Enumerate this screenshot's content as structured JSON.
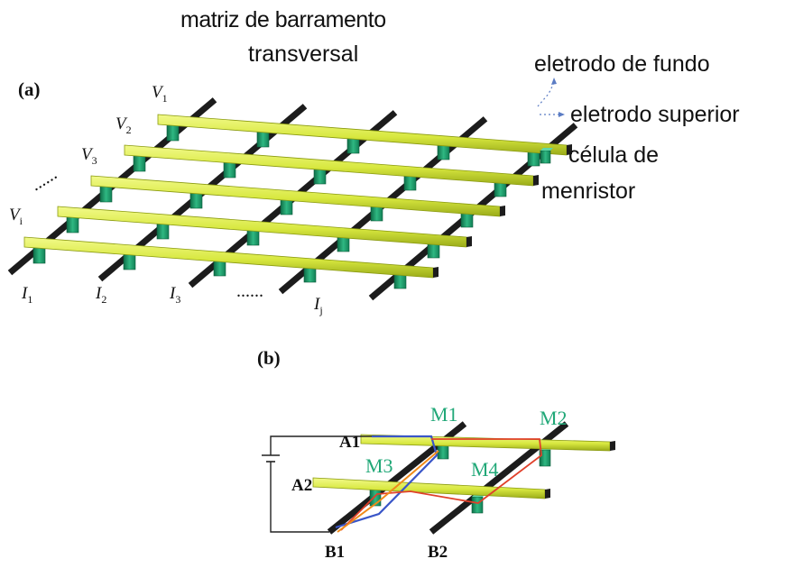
{
  "title": {
    "line1": "matriz de barramento",
    "line2": "transversal"
  },
  "legend": {
    "bottom_electrode": "eletrodo de fundo",
    "top_electrode": "eletrodo superior",
    "cell_line1": "célula de",
    "cell_line2": "menristor"
  },
  "panel_a": {
    "label": "(a)",
    "row_labels": [
      {
        "sym": "V",
        "sub": "1"
      },
      {
        "sym": "V",
        "sub": "2"
      },
      {
        "sym": "V",
        "sub": "3"
      },
      {
        "sym": "V",
        "sub": "i"
      }
    ],
    "col_labels": [
      {
        "sym": "I",
        "sub": "1"
      },
      {
        "sym": "I",
        "sub": "2"
      },
      {
        "sym": "I",
        "sub": "3"
      },
      {
        "sym": "I",
        "sub": "j"
      }
    ],
    "ellipsis": "......"
  },
  "panel_b": {
    "label": "(b)",
    "row_labels": [
      "A1",
      "A2"
    ],
    "col_labels": [
      "B1",
      "B2"
    ],
    "cells": [
      "M1",
      "M2",
      "M3",
      "M4"
    ]
  },
  "colors": {
    "top_electrode": "#d8e840",
    "bottom_electrode": "#1c1c1c",
    "memristor": "#1f9a6a",
    "path_red": "#e0402a",
    "path_orange": "#f08a1a",
    "path_blue": "#3a56c8",
    "cell_label": "#21a878"
  }
}
